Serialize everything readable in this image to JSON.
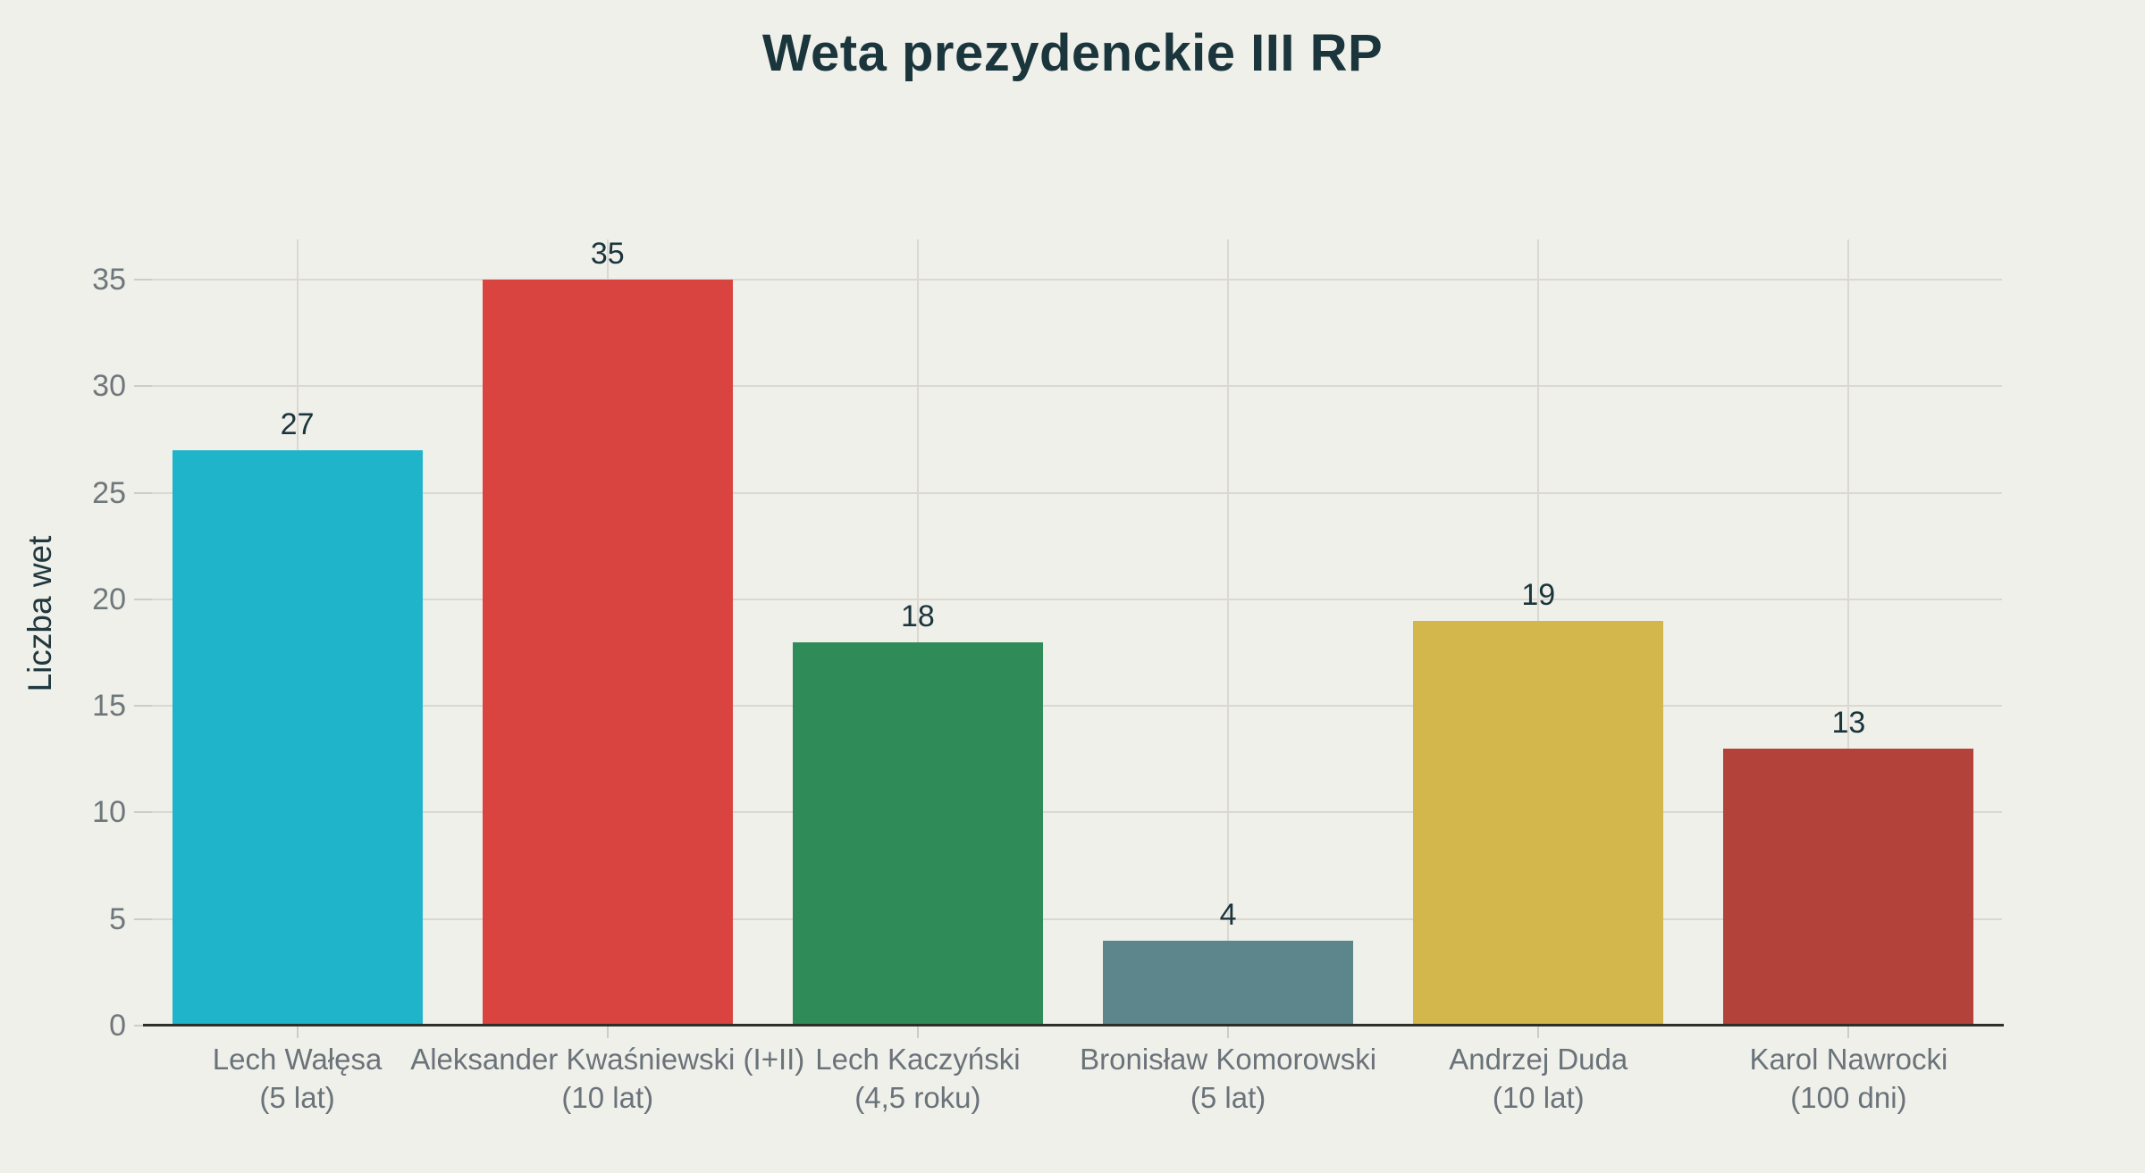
{
  "page": {
    "background": "#F0F0EA"
  },
  "chart_data": {
    "type": "bar",
    "title": "Weta prezydenckie III RP",
    "ylabel": "Liczba wet",
    "xlabel": "",
    "categories": [
      {
        "name": "Lech Wałęsa",
        "term": "(5 lat)"
      },
      {
        "name": "Aleksander Kwaśniewski (I+II)",
        "term": "(10 lat)"
      },
      {
        "name": "Lech Kaczyński",
        "term": "(4,5 roku)"
      },
      {
        "name": "Bronisław Komorowski",
        "term": "(5 lat)"
      },
      {
        "name": "Andrzej Duda",
        "term": "(10 lat)"
      },
      {
        "name": "Karol Nawrocki",
        "term": "(100 dni)"
      }
    ],
    "values": [
      27,
      35,
      18,
      4,
      19,
      13
    ],
    "value_labels": [
      "27",
      "35",
      "18",
      "4",
      "19",
      "13"
    ],
    "bar_colors": [
      "#1FB4C9",
      "#D94441",
      "#2F8B57",
      "#5D868C",
      "#D3B74C",
      "#B2423A"
    ],
    "yticks": [
      0,
      5,
      10,
      15,
      20,
      25,
      30,
      35
    ],
    "ylim": [
      0,
      36.9
    ],
    "grid": true,
    "legend": false,
    "colors": {
      "background": "#F0F0EA",
      "gridline": "#DBD7D1",
      "tick_mark": "#CFCBC5",
      "axis_line": "#2D2D29",
      "title_text": "#1B353C",
      "value_text": "#1B353C",
      "ytick_text": "#6E777B",
      "category_text": "#6A737A",
      "ylabel_text": "#21383F"
    }
  }
}
